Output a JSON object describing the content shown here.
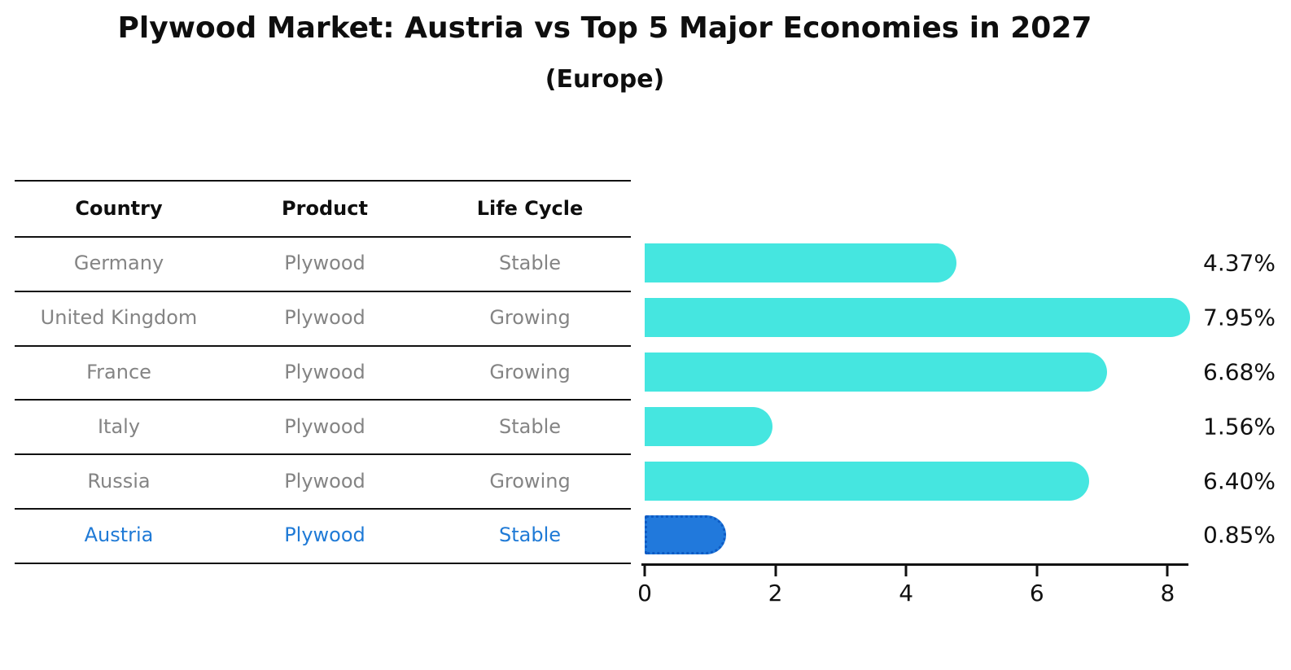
{
  "header": {
    "title": "Plywood Market: Austria vs Top 5 Major Economies in 2027",
    "subtitle": "(Europe)"
  },
  "table": {
    "columns": [
      "Country",
      "Product",
      "Life Cycle"
    ],
    "rows": [
      {
        "country": "Germany",
        "product": "Plywood",
        "life_cycle": "Stable",
        "highlight": false
      },
      {
        "country": "United Kingdom",
        "product": "Plywood",
        "life_cycle": "Growing",
        "highlight": false
      },
      {
        "country": "France",
        "product": "Plywood",
        "life_cycle": "Growing",
        "highlight": false
      },
      {
        "country": "Italy",
        "product": "Plywood",
        "life_cycle": "Stable",
        "highlight": false
      },
      {
        "country": "Russia",
        "product": "Plywood",
        "life_cycle": "Growing",
        "highlight": false
      },
      {
        "country": "Austria",
        "product": "Plywood",
        "life_cycle": "Stable",
        "highlight": true
      }
    ]
  },
  "chart_data": {
    "type": "bar",
    "orientation": "horizontal",
    "title": "Plywood Market: Austria vs Top 5 Major Economies in 2027 (Europe)",
    "categories": [
      "Germany",
      "United Kingdom",
      "France",
      "Italy",
      "Russia",
      "Austria"
    ],
    "values": [
      4.37,
      7.95,
      6.68,
      1.56,
      6.4,
      0.85
    ],
    "value_labels": [
      "4.37%",
      "7.95%",
      "6.68%",
      "1.56%",
      "6.40%",
      "0.85%"
    ],
    "highlight_index": 5,
    "x_ticks": [
      0,
      2,
      4,
      6,
      8
    ],
    "xlim": [
      0,
      8.35
    ],
    "xlabel": "",
    "ylabel": "",
    "grid": false,
    "legend": "none",
    "colors": {
      "bar": "#45E6E0",
      "highlight_bar": "#2179DC",
      "highlight_border": "#0E5BC4",
      "row_text": "#848484",
      "highlight_text": "#1F7AD6",
      "axis_text": "#111111"
    }
  }
}
